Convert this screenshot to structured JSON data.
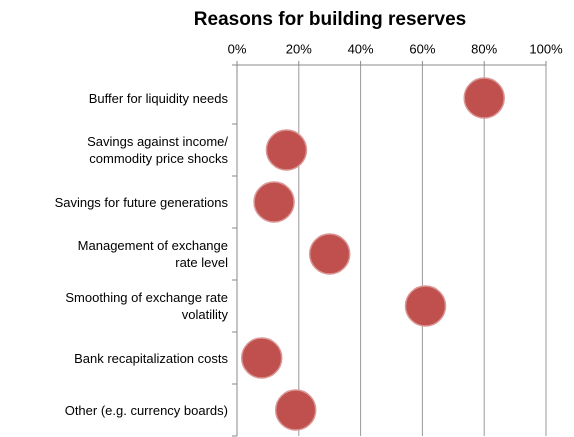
{
  "chart_data": {
    "type": "dot",
    "title": "Reasons for building reserves",
    "categories": [
      "Buffer for liquidity needs",
      "Savings against income/\ncommodity price shocks",
      "Savings for future generations",
      "Management of exchange\nrate level",
      "Smoothing of exchange rate\nvolatility",
      "Bank recapitalization costs",
      "Other (e.g. currency boards)"
    ],
    "values": [
      80,
      16,
      12,
      30,
      61,
      8,
      19
    ],
    "color": "#c0504d",
    "xlim": [
      0,
      100
    ],
    "xticks": [
      {
        "value": 0,
        "label": "0%"
      },
      {
        "value": 20,
        "label": "20%"
      },
      {
        "value": 40,
        "label": "40%"
      },
      {
        "value": 60,
        "label": "60%"
      },
      {
        "value": 80,
        "label": "80%"
      },
      {
        "value": 100,
        "label": "100%"
      }
    ],
    "grid": true
  }
}
